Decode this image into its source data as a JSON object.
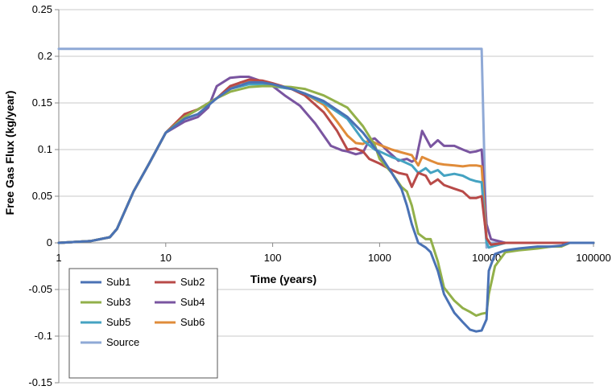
{
  "chart_data": {
    "type": "line",
    "xlabel": "Time (years)",
    "ylabel": "Free Gas Flux (kg/year)",
    "x_scale": "log",
    "xlim": [
      1,
      100000
    ],
    "ylim": [
      -0.15,
      0.25
    ],
    "x_ticks": [
      "1",
      "10",
      "100",
      "1000",
      "10000",
      "100000"
    ],
    "y_ticks": [
      "0.25",
      "0.2",
      "0.15",
      "0.1",
      "0.05",
      "0",
      "-0.05",
      "-0.1",
      "-0.15"
    ],
    "grid": "horizontal",
    "legend_position": "bottom-left",
    "series": [
      {
        "name": "Sub1",
        "color": "#4a72b5",
        "points": [
          [
            1,
            0
          ],
          [
            2,
            0.002
          ],
          [
            3,
            0.006
          ],
          [
            3.5,
            0.015
          ],
          [
            4,
            0.03
          ],
          [
            5,
            0.055
          ],
          [
            7,
            0.085
          ],
          [
            10,
            0.118
          ],
          [
            15,
            0.133
          ],
          [
            20,
            0.138
          ],
          [
            30,
            0.155
          ],
          [
            40,
            0.165
          ],
          [
            60,
            0.172
          ],
          [
            80,
            0.172
          ],
          [
            100,
            0.17
          ],
          [
            150,
            0.165
          ],
          [
            200,
            0.16
          ],
          [
            300,
            0.152
          ],
          [
            500,
            0.135
          ],
          [
            700,
            0.118
          ],
          [
            1000,
            0.095
          ],
          [
            1300,
            0.075
          ],
          [
            1600,
            0.058
          ],
          [
            1800,
            0.04
          ],
          [
            2000,
            0.02
          ],
          [
            2300,
            0.0
          ],
          [
            2700,
            -0.005
          ],
          [
            3000,
            -0.01
          ],
          [
            3500,
            -0.03
          ],
          [
            4000,
            -0.055
          ],
          [
            5000,
            -0.075
          ],
          [
            6000,
            -0.085
          ],
          [
            7000,
            -0.093
          ],
          [
            8000,
            -0.095
          ],
          [
            9000,
            -0.094
          ],
          [
            10000,
            -0.082
          ],
          [
            10500,
            -0.03
          ],
          [
            12000,
            -0.012
          ],
          [
            15000,
            -0.008
          ],
          [
            20000,
            -0.006
          ],
          [
            30000,
            -0.004
          ],
          [
            40000,
            -0.004
          ],
          [
            50000,
            -0.003
          ],
          [
            60000,
            0
          ],
          [
            100000,
            0
          ]
        ]
      },
      {
        "name": "Sub2",
        "color": "#b84a48",
        "points": [
          [
            1,
            0
          ],
          [
            2,
            0.002
          ],
          [
            3,
            0.006
          ],
          [
            3.5,
            0.015
          ],
          [
            4,
            0.03
          ],
          [
            5,
            0.055
          ],
          [
            7,
            0.085
          ],
          [
            10,
            0.118
          ],
          [
            15,
            0.138
          ],
          [
            20,
            0.143
          ],
          [
            30,
            0.155
          ],
          [
            40,
            0.168
          ],
          [
            60,
            0.175
          ],
          [
            80,
            0.174
          ],
          [
            100,
            0.171
          ],
          [
            150,
            0.165
          ],
          [
            200,
            0.158
          ],
          [
            300,
            0.14
          ],
          [
            400,
            0.12
          ],
          [
            500,
            0.1
          ],
          [
            600,
            0.101
          ],
          [
            700,
            0.098
          ],
          [
            800,
            0.09
          ],
          [
            1000,
            0.085
          ],
          [
            1200,
            0.08
          ],
          [
            1500,
            0.075
          ],
          [
            1800,
            0.073
          ],
          [
            2000,
            0.06
          ],
          [
            2300,
            0.075
          ],
          [
            2700,
            0.072
          ],
          [
            3000,
            0.063
          ],
          [
            3500,
            0.068
          ],
          [
            4000,
            0.062
          ],
          [
            5000,
            0.058
          ],
          [
            6000,
            0.055
          ],
          [
            7000,
            0.048
          ],
          [
            8000,
            0.048
          ],
          [
            9000,
            0.05
          ],
          [
            10000,
            0.005
          ],
          [
            11000,
            -0.002
          ],
          [
            15000,
            0
          ],
          [
            20000,
            0
          ],
          [
            50000,
            0
          ],
          [
            100000,
            0
          ]
        ]
      },
      {
        "name": "Sub3",
        "color": "#92b04a",
        "points": [
          [
            1,
            0
          ],
          [
            2,
            0.002
          ],
          [
            3,
            0.006
          ],
          [
            3.5,
            0.015
          ],
          [
            4,
            0.03
          ],
          [
            5,
            0.055
          ],
          [
            7,
            0.085
          ],
          [
            10,
            0.118
          ],
          [
            15,
            0.135
          ],
          [
            20,
            0.143
          ],
          [
            30,
            0.155
          ],
          [
            40,
            0.162
          ],
          [
            60,
            0.167
          ],
          [
            80,
            0.168
          ],
          [
            100,
            0.168
          ],
          [
            150,
            0.167
          ],
          [
            200,
            0.165
          ],
          [
            300,
            0.158
          ],
          [
            500,
            0.145
          ],
          [
            700,
            0.125
          ],
          [
            900,
            0.105
          ],
          [
            1000,
            0.09
          ],
          [
            1300,
            0.075
          ],
          [
            1600,
            0.06
          ],
          [
            1800,
            0.055
          ],
          [
            2000,
            0.04
          ],
          [
            2300,
            0.01
          ],
          [
            2700,
            0.004
          ],
          [
            3000,
            0.004
          ],
          [
            3500,
            -0.02
          ],
          [
            4000,
            -0.048
          ],
          [
            5000,
            -0.062
          ],
          [
            6000,
            -0.07
          ],
          [
            7000,
            -0.074
          ],
          [
            8000,
            -0.078
          ],
          [
            9000,
            -0.076
          ],
          [
            10000,
            -0.075
          ],
          [
            10500,
            -0.055
          ],
          [
            12000,
            -0.025
          ],
          [
            15000,
            -0.01
          ],
          [
            20000,
            -0.008
          ],
          [
            30000,
            -0.006
          ],
          [
            40000,
            -0.004
          ],
          [
            50000,
            -0.004
          ],
          [
            60000,
            0
          ],
          [
            100000,
            0
          ]
        ]
      },
      {
        "name": "Sub4",
        "color": "#7a55a0",
        "points": [
          [
            1,
            0
          ],
          [
            2,
            0.002
          ],
          [
            3,
            0.006
          ],
          [
            3.5,
            0.015
          ],
          [
            4,
            0.03
          ],
          [
            5,
            0.055
          ],
          [
            7,
            0.085
          ],
          [
            10,
            0.118
          ],
          [
            15,
            0.13
          ],
          [
            20,
            0.135
          ],
          [
            25,
            0.145
          ],
          [
            30,
            0.168
          ],
          [
            40,
            0.177
          ],
          [
            50,
            0.178
          ],
          [
            60,
            0.178
          ],
          [
            80,
            0.173
          ],
          [
            100,
            0.168
          ],
          [
            130,
            0.158
          ],
          [
            180,
            0.147
          ],
          [
            250,
            0.128
          ],
          [
            350,
            0.104
          ],
          [
            450,
            0.099
          ],
          [
            500,
            0.098
          ],
          [
            600,
            0.095
          ],
          [
            700,
            0.097
          ],
          [
            800,
            0.11
          ],
          [
            900,
            0.112
          ],
          [
            1000,
            0.107
          ],
          [
            1200,
            0.098
          ],
          [
            1500,
            0.088
          ],
          [
            1800,
            0.09
          ],
          [
            2000,
            0.087
          ],
          [
            2200,
            0.09
          ],
          [
            2500,
            0.12
          ],
          [
            3000,
            0.103
          ],
          [
            3500,
            0.11
          ],
          [
            4000,
            0.104
          ],
          [
            5000,
            0.104
          ],
          [
            6000,
            0.1
          ],
          [
            7000,
            0.097
          ],
          [
            8000,
            0.098
          ],
          [
            9000,
            0.1
          ],
          [
            10000,
            0.02
          ],
          [
            11000,
            0.004
          ],
          [
            15000,
            0
          ],
          [
            20000,
            0
          ],
          [
            100000,
            0
          ]
        ]
      },
      {
        "name": "Sub5",
        "color": "#45a3c2",
        "points": [
          [
            1,
            0
          ],
          [
            2,
            0.002
          ],
          [
            3,
            0.006
          ],
          [
            3.5,
            0.015
          ],
          [
            4,
            0.03
          ],
          [
            5,
            0.055
          ],
          [
            7,
            0.085
          ],
          [
            10,
            0.118
          ],
          [
            15,
            0.135
          ],
          [
            20,
            0.143
          ],
          [
            30,
            0.155
          ],
          [
            40,
            0.165
          ],
          [
            60,
            0.17
          ],
          [
            80,
            0.17
          ],
          [
            100,
            0.168
          ],
          [
            150,
            0.165
          ],
          [
            200,
            0.16
          ],
          [
            300,
            0.15
          ],
          [
            500,
            0.133
          ],
          [
            700,
            0.11
          ],
          [
            900,
            0.1
          ],
          [
            1000,
            0.098
          ],
          [
            1300,
            0.092
          ],
          [
            1600,
            0.088
          ],
          [
            2000,
            0.083
          ],
          [
            2300,
            0.075
          ],
          [
            2700,
            0.08
          ],
          [
            3000,
            0.075
          ],
          [
            3500,
            0.078
          ],
          [
            4000,
            0.072
          ],
          [
            5000,
            0.074
          ],
          [
            6000,
            0.072
          ],
          [
            7000,
            0.068
          ],
          [
            8000,
            0.066
          ],
          [
            9000,
            0.065
          ],
          [
            10000,
            0.0
          ],
          [
            10500,
            -0.005
          ],
          [
            12000,
            -0.003
          ],
          [
            15000,
            0
          ],
          [
            20000,
            0
          ],
          [
            100000,
            0
          ]
        ]
      },
      {
        "name": "Sub6",
        "color": "#e08c3a",
        "points": [
          [
            1,
            0
          ],
          [
            2,
            0.002
          ],
          [
            3,
            0.006
          ],
          [
            3.5,
            0.015
          ],
          [
            4,
            0.03
          ],
          [
            5,
            0.055
          ],
          [
            7,
            0.085
          ],
          [
            10,
            0.118
          ],
          [
            15,
            0.136
          ],
          [
            20,
            0.143
          ],
          [
            30,
            0.155
          ],
          [
            40,
            0.165
          ],
          [
            50,
            0.172
          ],
          [
            60,
            0.173
          ],
          [
            80,
            0.171
          ],
          [
            100,
            0.168
          ],
          [
            150,
            0.165
          ],
          [
            200,
            0.16
          ],
          [
            300,
            0.148
          ],
          [
            400,
            0.13
          ],
          [
            500,
            0.115
          ],
          [
            600,
            0.107
          ],
          [
            700,
            0.106
          ],
          [
            800,
            0.11
          ],
          [
            1000,
            0.105
          ],
          [
            1300,
            0.1
          ],
          [
            1600,
            0.097
          ],
          [
            2000,
            0.094
          ],
          [
            2300,
            0.083
          ],
          [
            2500,
            0.092
          ],
          [
            3000,
            0.088
          ],
          [
            3500,
            0.085
          ],
          [
            4000,
            0.084
          ],
          [
            5000,
            0.083
          ],
          [
            6000,
            0.082
          ],
          [
            7000,
            0.083
          ],
          [
            8000,
            0.083
          ],
          [
            9000,
            0.082
          ],
          [
            10000,
            0.005
          ],
          [
            11000,
            -0.002
          ],
          [
            15000,
            0
          ],
          [
            20000,
            0
          ],
          [
            100000,
            0
          ]
        ]
      },
      {
        "name": "Source",
        "color": "#8fa9d6",
        "points": [
          [
            1,
            0.208
          ],
          [
            9000,
            0.208
          ],
          [
            10000,
            -0.005
          ],
          [
            10500,
            0
          ],
          [
            100000,
            0
          ]
        ]
      }
    ]
  }
}
